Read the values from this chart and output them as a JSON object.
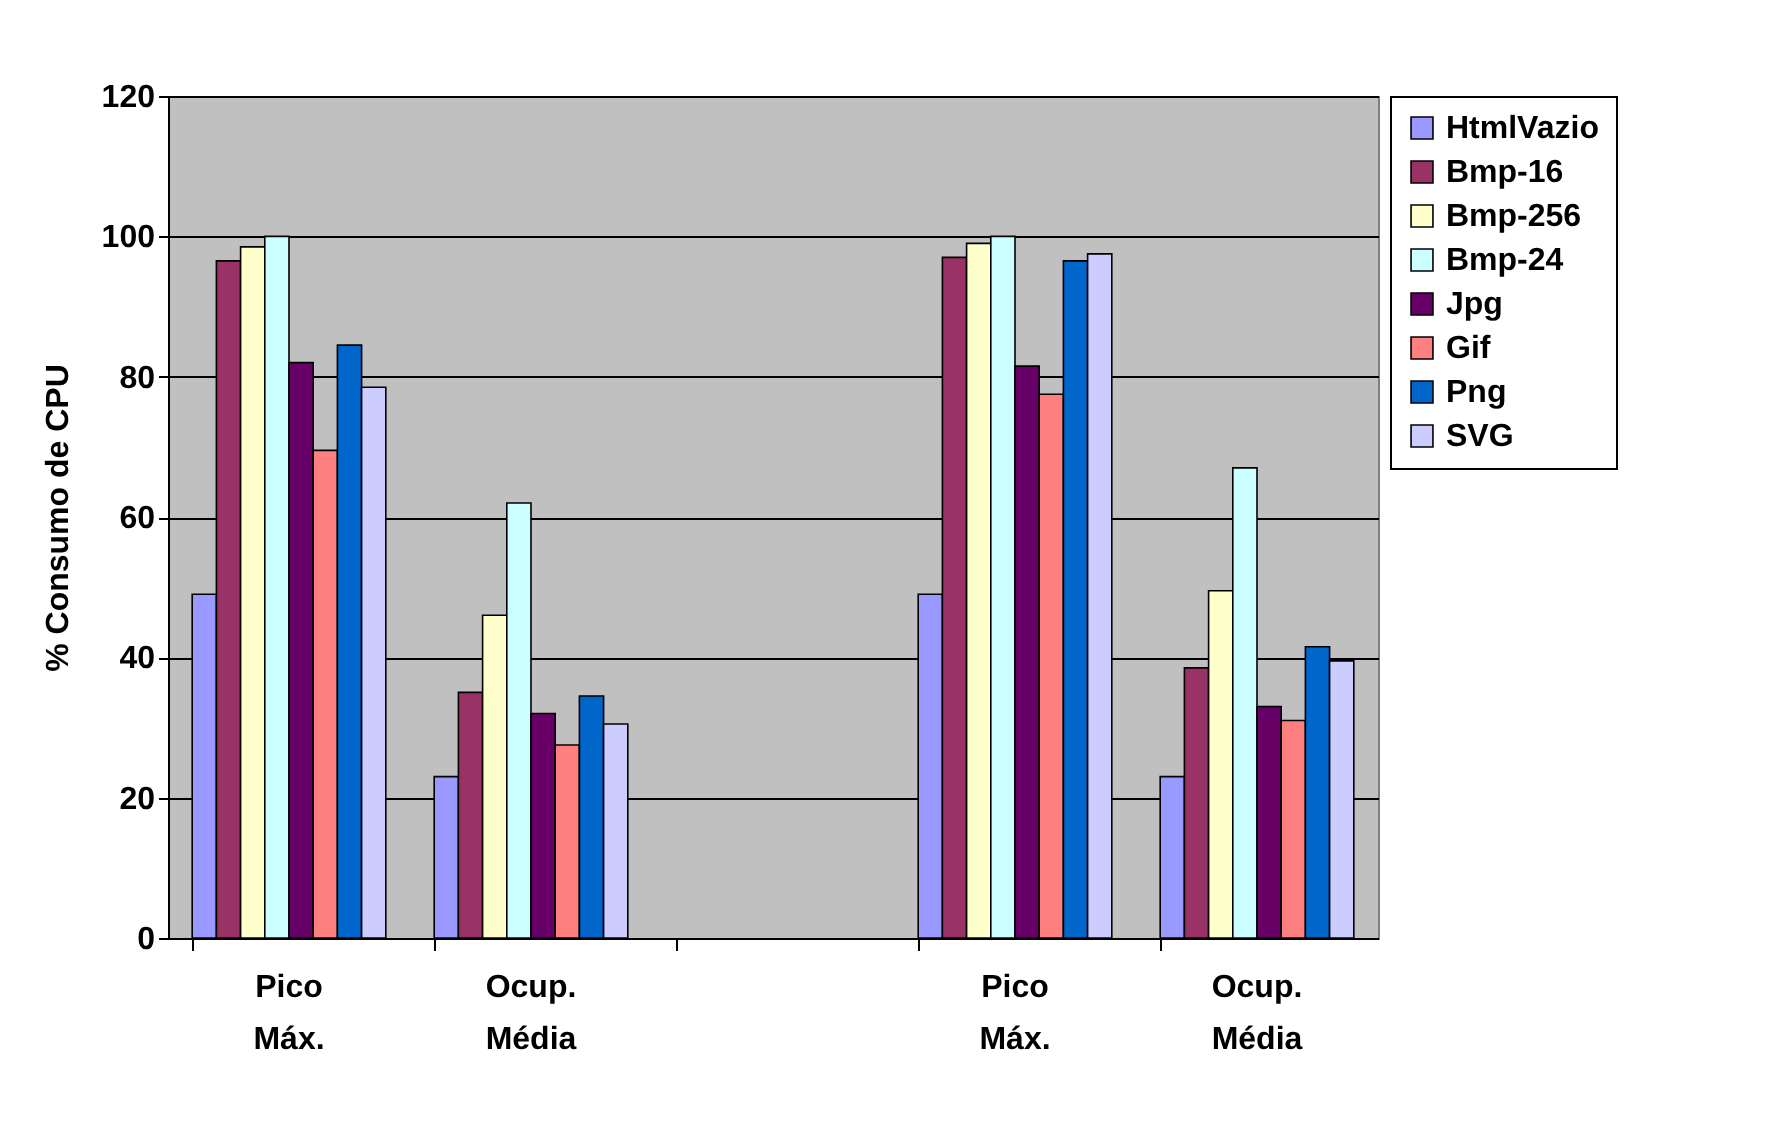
{
  "chart_data": {
    "type": "bar",
    "ylabel": "% Consumo de CPU",
    "categories": [
      "Pico Máx.",
      "Ocup. Média",
      null,
      "Pico Máx.",
      "Ocup. Média"
    ],
    "series": [
      {
        "name": "HtmlVazio",
        "color": "#9999ff",
        "values": [
          49,
          23,
          null,
          49,
          23
        ]
      },
      {
        "name": "Bmp-16",
        "color": "#993366",
        "values": [
          96.5,
          35,
          null,
          97,
          38.5
        ]
      },
      {
        "name": "Bmp-256",
        "color": "#ffffcc",
        "values": [
          98.5,
          46,
          null,
          99,
          49.5
        ]
      },
      {
        "name": "Bmp-24",
        "color": "#ccffff",
        "values": [
          100,
          62,
          null,
          100,
          67
        ]
      },
      {
        "name": "Jpg",
        "color": "#660066",
        "values": [
          82,
          32,
          null,
          81.5,
          33
        ]
      },
      {
        "name": "Gif",
        "color": "#ff8080",
        "values": [
          69.5,
          27.5,
          null,
          77.5,
          31
        ]
      },
      {
        "name": "Png",
        "color": "#0066cc",
        "values": [
          84.5,
          34.5,
          null,
          96.5,
          41.5
        ]
      },
      {
        "name": "SVG",
        "color": "#ccccff",
        "values": [
          78.5,
          30.5,
          null,
          97.5,
          39.5
        ]
      }
    ],
    "ylim": [
      0,
      120
    ],
    "yticks": [
      0,
      20,
      40,
      60,
      80,
      100,
      120
    ],
    "grid": "y",
    "legend": "right"
  }
}
